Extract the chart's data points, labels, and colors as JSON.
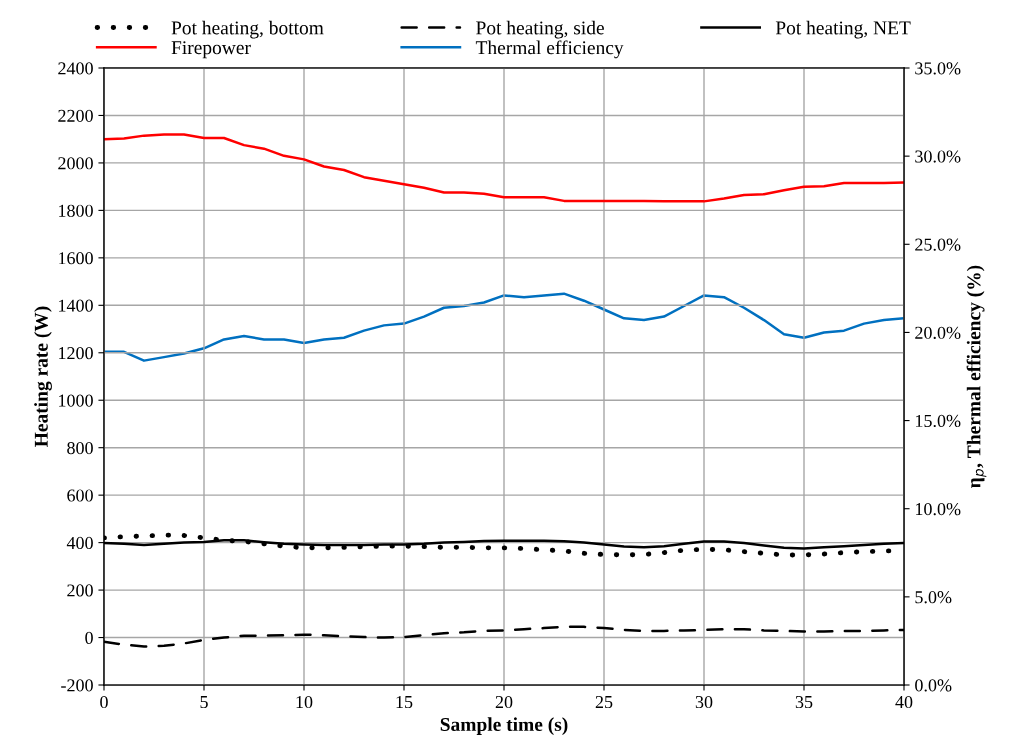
{
  "chart_data": {
    "type": "line",
    "xlabel": "Sample time (s)",
    "ylabel": "Heating rate (W)",
    "y2label": "η$_{p}$, Thermal efficiency (%)",
    "x": [
      0,
      1,
      2,
      3,
      4,
      5,
      6,
      7,
      8,
      9,
      10,
      11,
      12,
      13,
      14,
      15,
      16,
      17,
      18,
      19,
      20,
      21,
      22,
      23,
      24,
      25,
      26,
      27,
      28,
      29,
      30,
      31,
      32,
      33,
      34,
      35,
      36,
      37,
      38,
      39,
      40
    ],
    "series": [
      {
        "name": "Pot heating, bottom",
        "color": "#000000",
        "line_style": "dotted",
        "values": [
          420,
          425,
          428,
          432,
          430,
          420,
          410,
          405,
          395,
          385,
          378,
          378,
          380,
          383,
          385,
          385,
          383,
          380,
          380,
          378,
          378,
          375,
          370,
          365,
          355,
          350,
          348,
          350,
          358,
          368,
          372,
          370,
          362,
          355,
          348,
          348,
          352,
          358,
          362,
          365,
          365
        ]
      },
      {
        "name": "Pot heating, side",
        "color": "#000000",
        "line_style": "dashed",
        "values": [
          -18,
          -30,
          -38,
          -35,
          -25,
          -10,
          0,
          8,
          8,
          10,
          12,
          10,
          5,
          2,
          0,
          2,
          10,
          18,
          22,
          28,
          30,
          35,
          40,
          45,
          45,
          40,
          32,
          28,
          28,
          30,
          32,
          35,
          35,
          30,
          28,
          25,
          25,
          28,
          28,
          30,
          32
        ]
      },
      {
        "name": "Pot heating, NET",
        "color": "#000000",
        "line_style": "solid",
        "values": [
          398,
          395,
          390,
          395,
          400,
          403,
          410,
          410,
          402,
          395,
          392,
          390,
          390,
          390,
          392,
          392,
          395,
          400,
          403,
          407,
          408,
          408,
          408,
          406,
          400,
          392,
          384,
          380,
          385,
          395,
          405,
          405,
          398,
          388,
          378,
          375,
          380,
          385,
          390,
          395,
          398
        ]
      },
      {
        "name": "Firepower",
        "color": "#ff0000",
        "line_style": "solid",
        "values": [
          2100,
          2103,
          2115,
          2120,
          2120,
          2105,
          2105,
          2075,
          2060,
          2030,
          2015,
          1985,
          1970,
          1940,
          1925,
          1910,
          1895,
          1875,
          1875,
          1870,
          1855,
          1855,
          1855,
          1840,
          1840,
          1840,
          1840,
          1840,
          1838,
          1838,
          1838,
          1850,
          1865,
          1868,
          1885,
          1900,
          1902,
          1915,
          1915,
          1915,
          1917
        ]
      },
      {
        "name": "Thermal efficiency",
        "color": "#0070c0",
        "line_style": "solid",
        "axis": "y2",
        "values": [
          18.9,
          18.9,
          18.4,
          18.6,
          18.8,
          19.1,
          19.6,
          19.8,
          19.6,
          19.6,
          19.4,
          19.6,
          19.7,
          20.1,
          20.4,
          20.5,
          20.9,
          21.4,
          21.5,
          21.7,
          22.1,
          22.0,
          22.1,
          22.2,
          21.8,
          21.3,
          20.8,
          20.7,
          20.9,
          21.5,
          22.1,
          22.0,
          21.4,
          20.7,
          19.9,
          19.7,
          20.0,
          20.1,
          20.5,
          20.7,
          20.8
        ]
      }
    ],
    "xlim": [
      0,
      40
    ],
    "xticks": [
      0,
      5,
      10,
      15,
      20,
      25,
      30,
      35,
      40
    ],
    "ylim": [
      -200,
      2400
    ],
    "yticks": [
      -200,
      0,
      200,
      400,
      600,
      800,
      1000,
      1200,
      1400,
      1600,
      1800,
      2000,
      2200,
      2400
    ],
    "y2lim": [
      0,
      35
    ],
    "y2ticks": [
      {
        "value": 0,
        "label": "0.0%"
      },
      {
        "value": 5,
        "label": "5.0%"
      },
      {
        "value": 10,
        "label": "10.0%"
      },
      {
        "value": 15,
        "label": "15.0%"
      },
      {
        "value": 20,
        "label": "20.0%"
      },
      {
        "value": 25,
        "label": "25.0%"
      },
      {
        "value": 30,
        "label": "30.0%"
      },
      {
        "value": 35,
        "label": "35.0%"
      }
    ],
    "grid": true,
    "legend": "top",
    "marker": "none"
  }
}
